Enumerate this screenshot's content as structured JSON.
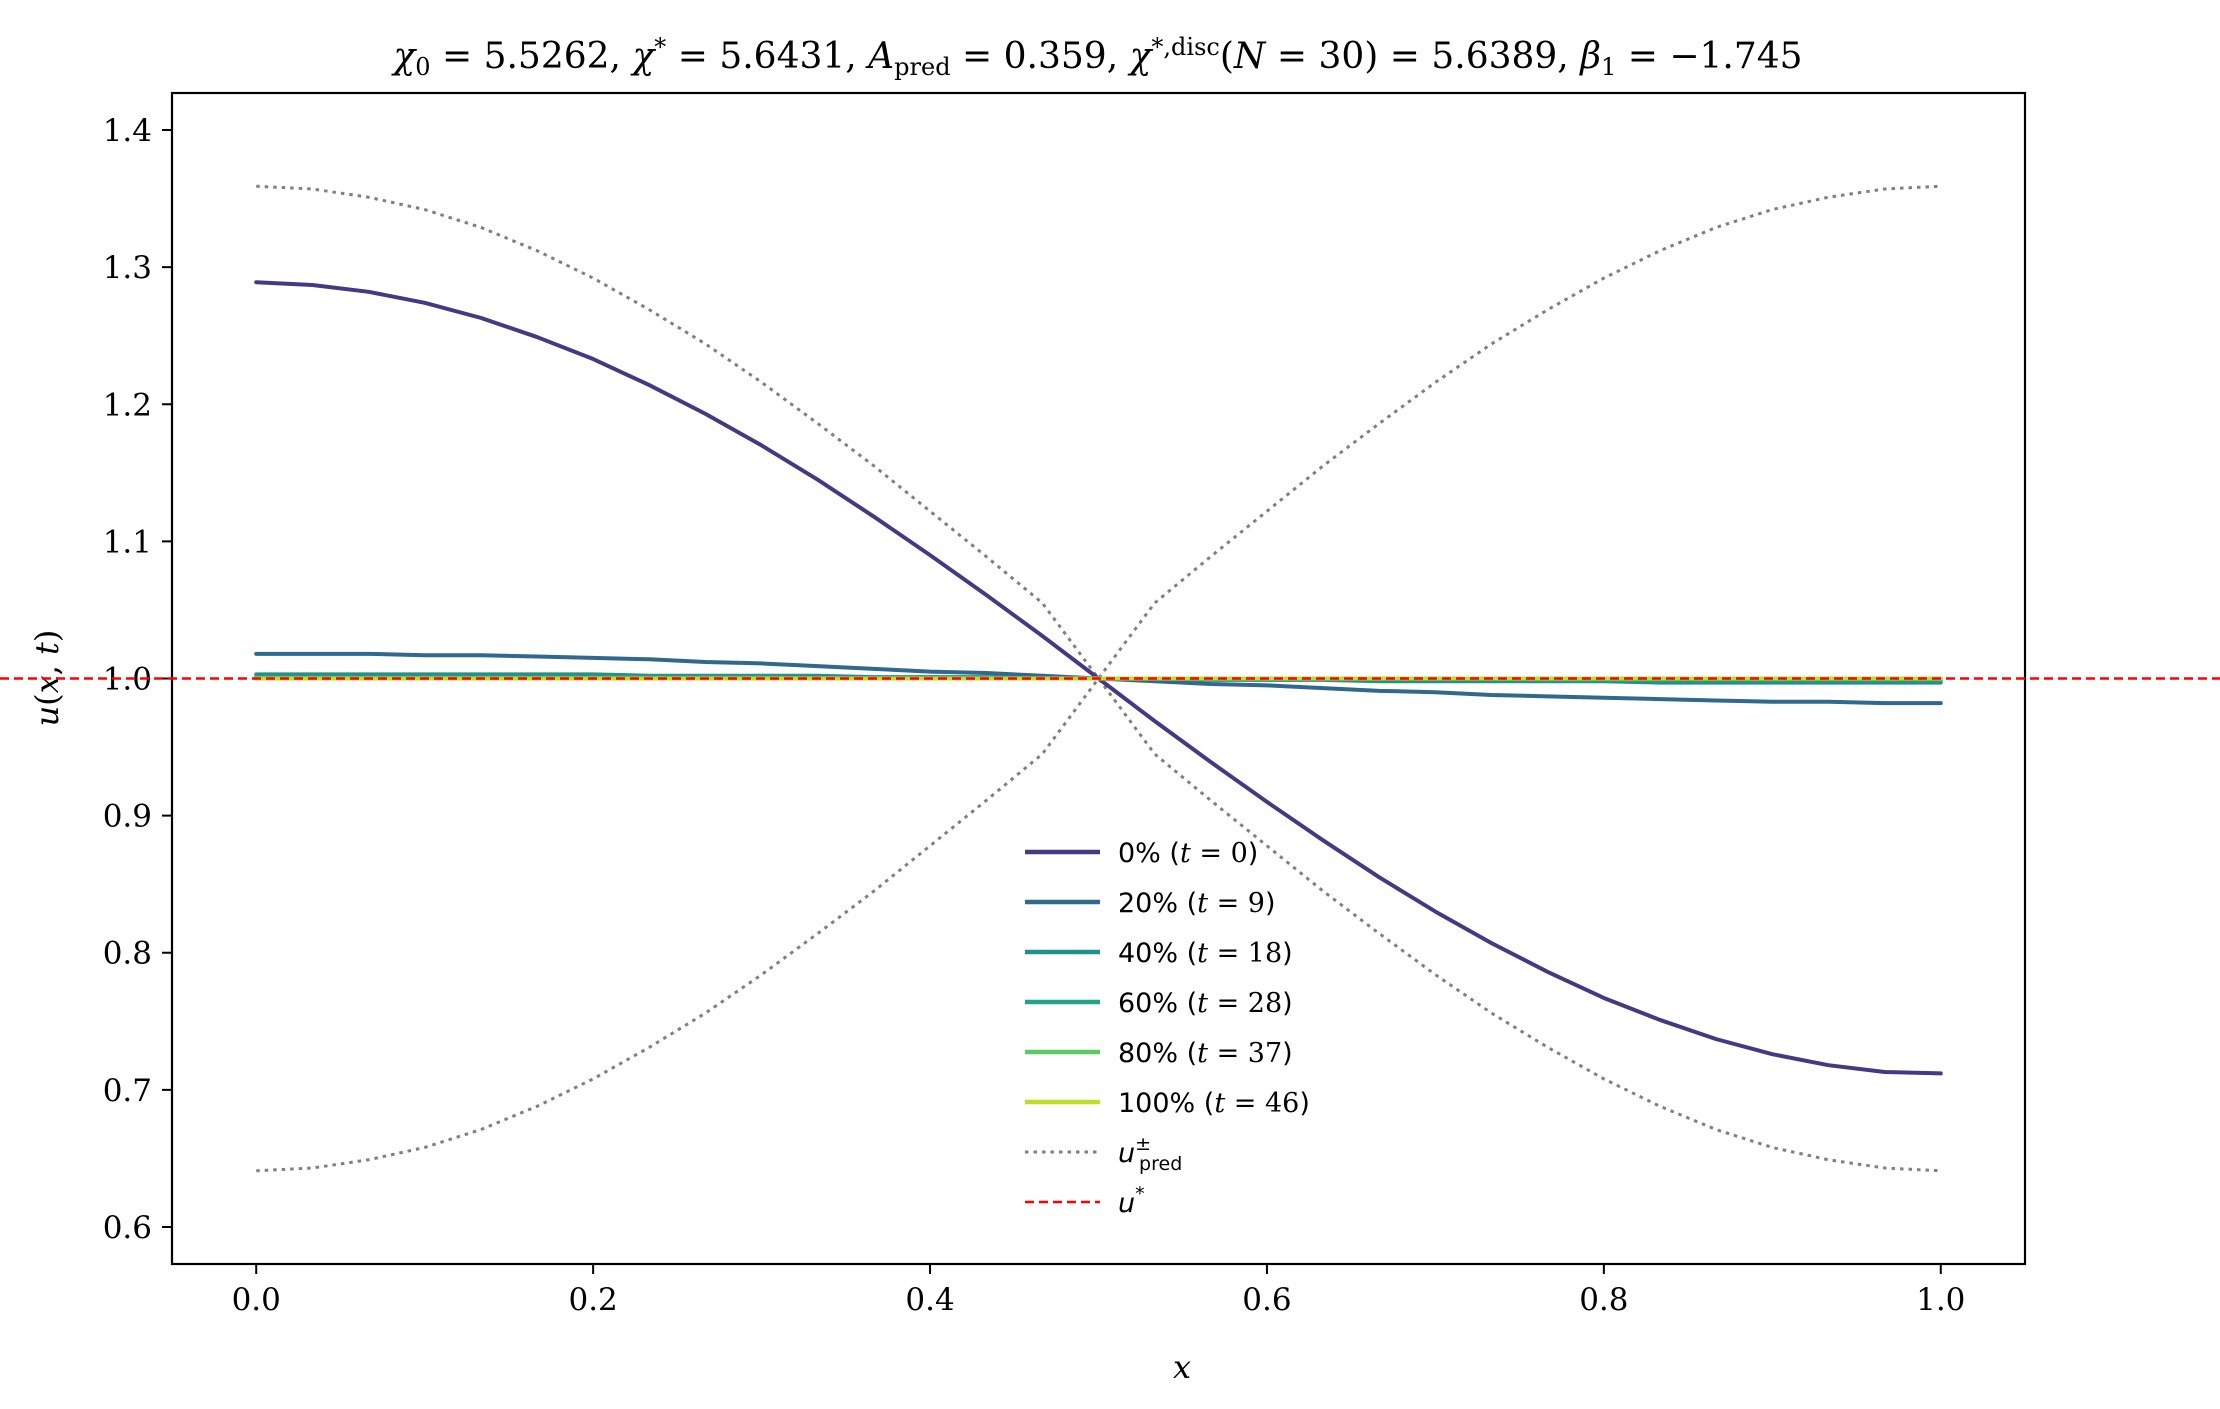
{
  "chart_data": {
    "type": "line",
    "title": "χ₀ = 5.5262,  χ* = 5.6431,  A_pred = 0.359,  χ*,disc(N = 30) = 5.6389,  β₁ = −1.745",
    "xlabel": "x",
    "ylabel": "u(x, t)",
    "xlim": [
      -0.05,
      1.05
    ],
    "ylim": [
      0.573,
      1.427
    ],
    "xticks": [
      "0.0",
      "0.2",
      "0.4",
      "0.6",
      "0.8",
      "1.0"
    ],
    "yticks": [
      "0.6",
      "0.7",
      "0.8",
      "0.9",
      "1.0",
      "1.1",
      "1.2",
      "1.3",
      "1.4"
    ],
    "grid": false,
    "legend_position": "bottom-center",
    "x": [
      0,
      0.0333,
      0.0667,
      0.1,
      0.1333,
      0.1667,
      0.2,
      0.2333,
      0.2667,
      0.3,
      0.3333,
      0.3667,
      0.4,
      0.4333,
      0.4667,
      0.5,
      0.5333,
      0.5667,
      0.6,
      0.6333,
      0.6667,
      0.7,
      0.7333,
      0.7667,
      0.8,
      0.8333,
      0.8667,
      0.9,
      0.9333,
      0.9667,
      1.0
    ],
    "series": [
      {
        "name": "0% (t = 0)",
        "color": "#443983",
        "style": "solid",
        "values": [
          1.289,
          1.287,
          1.282,
          1.274,
          1.263,
          1.249,
          1.233,
          1.214,
          1.193,
          1.17,
          1.145,
          1.118,
          1.09,
          1.061,
          1.031,
          1.0,
          0.969,
          0.939,
          0.91,
          0.882,
          0.855,
          0.83,
          0.807,
          0.786,
          0.767,
          0.751,
          0.737,
          0.726,
          0.718,
          0.713,
          0.712
        ]
      },
      {
        "name": "20% (t = 9)",
        "color": "#31688e",
        "style": "solid",
        "values": [
          1.018,
          1.018,
          1.018,
          1.017,
          1.017,
          1.016,
          1.015,
          1.014,
          1.012,
          1.011,
          1.009,
          1.007,
          1.005,
          1.004,
          1.002,
          1.0,
          0.998,
          0.996,
          0.995,
          0.993,
          0.991,
          0.99,
          0.988,
          0.987,
          0.986,
          0.985,
          0.984,
          0.983,
          0.983,
          0.982,
          0.982
        ]
      },
      {
        "name": "40% (t = 18)",
        "color": "#21918c",
        "style": "solid",
        "values": [
          1.003,
          1.003,
          1.003,
          1.003,
          1.003,
          1.003,
          1.003,
          1.002,
          1.002,
          1.002,
          1.002,
          1.001,
          1.001,
          1.001,
          1.0,
          1.0,
          1.0,
          0.999,
          0.999,
          0.999,
          0.998,
          0.998,
          0.998,
          0.998,
          0.998,
          0.997,
          0.997,
          0.997,
          0.997,
          0.997,
          0.997
        ]
      },
      {
        "name": "60% (t = 28)",
        "color": "#20a386",
        "style": "solid",
        "values": [
          1.001,
          1.001,
          1.001,
          1.001,
          1.001,
          1.001,
          1.001,
          1.001,
          1.001,
          1.001,
          1.0,
          1.0,
          1.0,
          1.0,
          1.0,
          1.0,
          1.0,
          1.0,
          1.0,
          1.0,
          1.0,
          1.0,
          1.0,
          0.999,
          0.999,
          0.999,
          0.999,
          0.999,
          0.999,
          0.999,
          0.999
        ]
      },
      {
        "name": "80% (t = 37)",
        "color": "#5ec962",
        "style": "solid",
        "values": [
          1.0,
          1.0,
          1.0,
          1.0,
          1.0,
          1.0,
          1.0,
          1.0,
          1.0,
          1.0,
          1.0,
          1.0,
          1.0,
          1.0,
          1.0,
          1.0,
          1.0,
          1.0,
          1.0,
          1.0,
          1.0,
          1.0,
          1.0,
          1.0,
          1.0,
          1.0,
          1.0,
          1.0,
          1.0,
          1.0,
          1.0
        ]
      },
      {
        "name": "100% (t = 46)",
        "color": "#bddf26",
        "style": "solid",
        "values": [
          1.0,
          1.0,
          1.0,
          1.0,
          1.0,
          1.0,
          1.0,
          1.0,
          1.0,
          1.0,
          1.0,
          1.0,
          1.0,
          1.0,
          1.0,
          1.0,
          1.0,
          1.0,
          1.0,
          1.0,
          1.0,
          1.0,
          1.0,
          1.0,
          1.0,
          1.0,
          1.0,
          1.0,
          1.0,
          1.0,
          1.0
        ]
      },
      {
        "name": "u±pred",
        "color": "#808080",
        "style": "dotted",
        "values": [
          1.359,
          1.357,
          1.351,
          1.342,
          1.329,
          1.312,
          1.292,
          1.269,
          1.244,
          1.216,
          1.186,
          1.155,
          1.122,
          1.089,
          1.055,
          1.0,
          0.945,
          0.911,
          0.878,
          0.845,
          0.814,
          0.784,
          0.756,
          0.731,
          0.708,
          0.688,
          0.671,
          0.658,
          0.649,
          0.643,
          0.641
        ]
      },
      {
        "name": "",
        "color": "#808080",
        "style": "dotted",
        "values": [
          0.641,
          0.643,
          0.649,
          0.658,
          0.671,
          0.688,
          0.708,
          0.731,
          0.756,
          0.784,
          0.814,
          0.845,
          0.878,
          0.911,
          0.945,
          1.0,
          1.055,
          1.089,
          1.122,
          1.155,
          1.186,
          1.216,
          1.244,
          1.269,
          1.292,
          1.312,
          1.329,
          1.342,
          1.351,
          1.357,
          1.359
        ]
      }
    ],
    "hlines": [
      {
        "name": "u*",
        "y": 1.0,
        "color": "#ff0000",
        "style": "dashed"
      }
    ]
  }
}
